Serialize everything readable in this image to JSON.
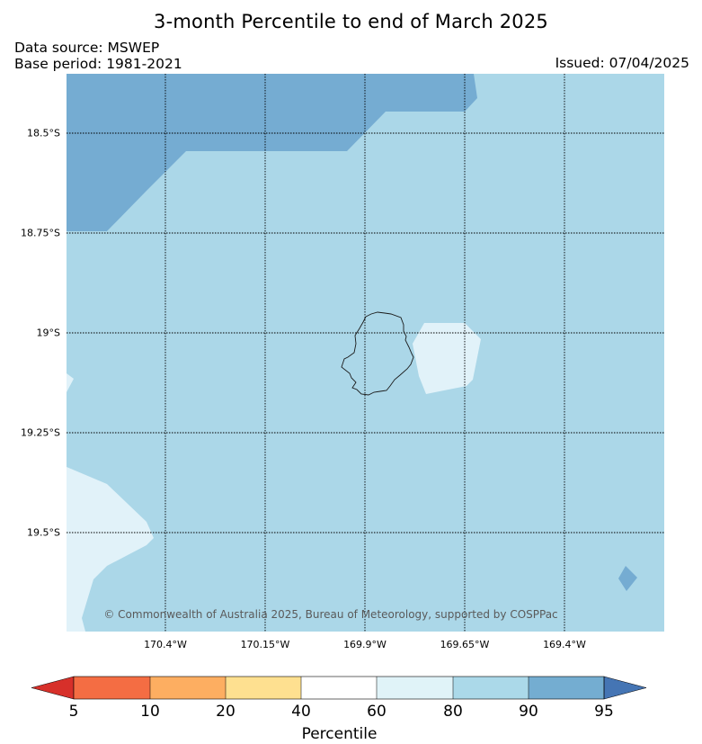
{
  "title": "3-month Percentile to end of March 2025",
  "data_source": "Data source: MSWEP",
  "base_period": "Base period: 1981-2021",
  "issued": "Issued: 07/04/2025",
  "copyright": "© Commonwealth of Australia 2025, Bureau of Meteorology, supported by COSPPac",
  "map": {
    "latitude_labels": [
      {
        "label": "18.5°S",
        "lat": -18.5
      },
      {
        "label": "18.75°S",
        "lat": -18.75
      },
      {
        "label": "19°S",
        "lat": -19.0
      },
      {
        "label": "19.25°S",
        "lat": -19.25
      },
      {
        "label": "19.5°S",
        "lat": -19.5
      }
    ],
    "longitude_labels": [
      {
        "label": "170.4°W",
        "lon": -170.4
      },
      {
        "label": "170.15°W",
        "lon": -170.15
      },
      {
        "label": "169.9°W",
        "lon": -169.9
      },
      {
        "label": "169.65°W",
        "lon": -169.65
      },
      {
        "label": "169.4°W",
        "lon": -169.4
      }
    ],
    "lat_range": [
      -19.75,
      -18.35
    ],
    "lon_range": [
      -170.65,
      -169.15
    ],
    "island_outline_color": "#1a1a1a",
    "gridline_color": "#000000"
  },
  "colorbar": {
    "label": "Percentile",
    "ticks": [
      "5",
      "10",
      "20",
      "40",
      "60",
      "80",
      "90",
      "95"
    ],
    "colors": {
      "below_5": "#d7302a",
      "p5_10": "#f46d43",
      "p10_20": "#fdae61",
      "p20_40": "#fee090",
      "p40_60": "#ffffff",
      "p60_80": "#e0f3f8",
      "p80_90": "#abd9e9",
      "p90_95": "#74add1",
      "above_95": "#4575b4"
    }
  }
}
